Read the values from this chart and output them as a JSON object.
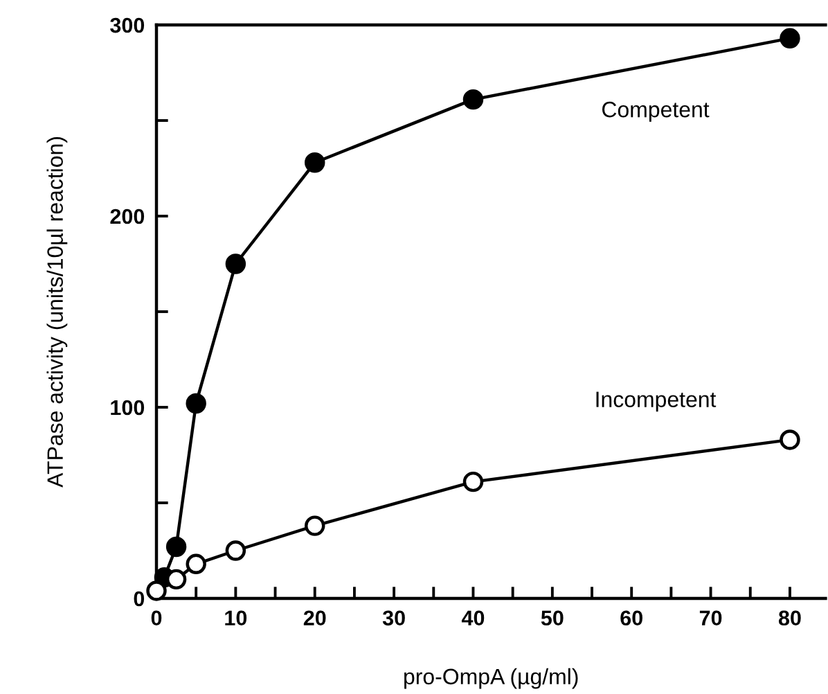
{
  "chart_data": {
    "type": "line",
    "xlabel": "pro-OmpA (µg/ml)",
    "ylabel": "ATPase activity (units/10µl reaction)",
    "xlim": [
      0,
      84.5
    ],
    "ylim": [
      0,
      300
    ],
    "xticks": [
      0,
      {
        "value": 5,
        "label": null
      },
      10,
      {
        "value": 15,
        "label": null
      },
      20,
      {
        "value": 25,
        "label": null
      },
      30,
      {
        "value": 35,
        "label": null
      },
      40,
      {
        "value": 45,
        "label": null
      },
      50,
      {
        "value": 55,
        "label": null
      },
      60,
      {
        "value": 65,
        "label": null
      },
      70,
      {
        "value": 75,
        "label": null
      },
      80
    ],
    "yticks": [
      0,
      {
        "value": 50,
        "label": null
      },
      100,
      {
        "value": 150,
        "label": null
      },
      200,
      {
        "value": 250,
        "label": null
      },
      300
    ],
    "grid": false,
    "legend": false,
    "line_style": "solid",
    "series": [
      {
        "name": "Competent",
        "color": "#000000",
        "marker": "circle",
        "x": [
          1,
          2.5,
          5,
          10,
          20,
          40,
          80
        ],
        "values": [
          11,
          27,
          102,
          175,
          228,
          261,
          293
        ]
      },
      {
        "name": "Incompetent",
        "color": "#ffffff",
        "marker": "circle",
        "x": [
          0,
          2.5,
          5,
          10,
          20,
          40,
          80
        ],
        "values": [
          4,
          10,
          18,
          25,
          38,
          61,
          83
        ]
      }
    ]
  }
}
